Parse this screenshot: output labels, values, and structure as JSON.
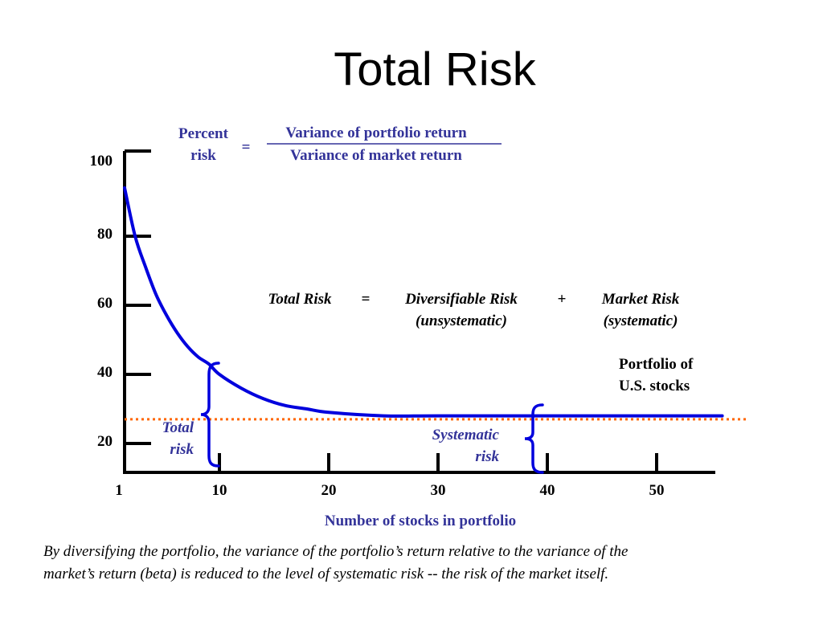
{
  "title": "Total Risk",
  "formula": {
    "lhs_line1": "Percent",
    "lhs_line2": "risk",
    "equals": "=",
    "numerator": "Variance of portfolio return",
    "denominator": "Variance of market return"
  },
  "equation": {
    "total": "Total Risk",
    "equals": "=",
    "diversifiable": "Diversifiable Risk",
    "diversifiable_sub": "(unsystematic)",
    "plus": "+",
    "market": "Market Risk",
    "market_sub": "(systematic)"
  },
  "portfolio_label": {
    "line1": "Portfolio of",
    "line2": "U.S. stocks"
  },
  "total_risk_label": {
    "line1": "Total",
    "line2": "risk"
  },
  "systematic_risk_label": {
    "line1": "Systematic",
    "line2": "risk"
  },
  "caption": {
    "line1": "By diversifying the portfolio, the variance of the portfolio’s return relative to the variance of the",
    "line2": "market’s return (beta) is reduced to the level of systematic risk -- the risk of the market itself."
  },
  "colors": {
    "curve": "#0000dd",
    "systematic_line": "#ff6600",
    "label_blue": "#333399",
    "axis": "#000000"
  },
  "chart_data": {
    "type": "line",
    "xlabel": "Number of stocks in portfolio",
    "ylabel": "",
    "x_ticks": [
      "1",
      "10",
      "20",
      "30",
      "40",
      "50"
    ],
    "y_ticks": [
      "20",
      "40",
      "60",
      "80",
      "100"
    ],
    "xlim": [
      1,
      56
    ],
    "ylim": [
      10,
      100
    ],
    "grid": false,
    "series": [
      {
        "x": [
          1,
          2,
          3,
          4,
          5,
          6,
          7,
          8,
          9,
          10,
          12,
          14,
          16,
          18,
          20,
          25,
          30,
          40,
          50,
          56
        ],
        "y": [
          94,
          80,
          71,
          63,
          57,
          52,
          48,
          45,
          43,
          40,
          36,
          33,
          31,
          30,
          29,
          28,
          28,
          28,
          28,
          28
        ]
      }
    ],
    "systematic_risk_level": 27
  }
}
